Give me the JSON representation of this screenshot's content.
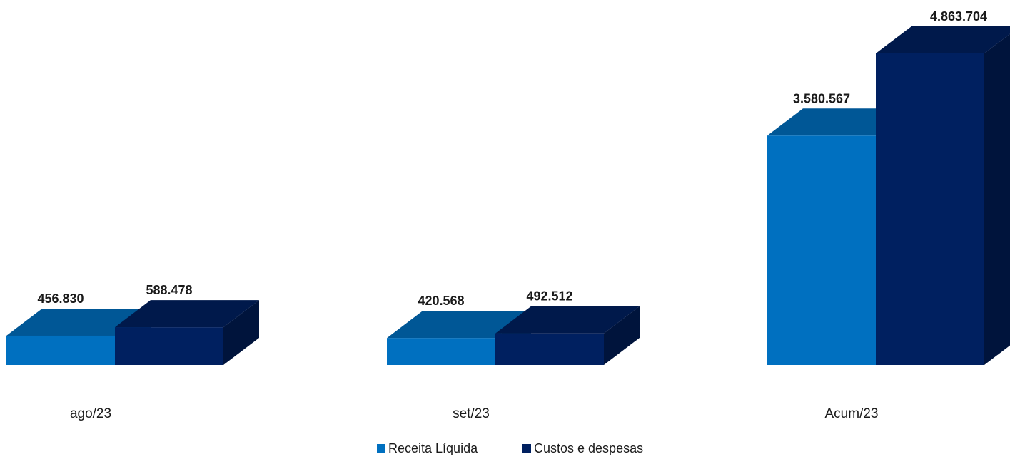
{
  "chart_data": {
    "type": "bar",
    "categories": [
      "ago/23",
      "set/23",
      "Acum/23"
    ],
    "series": [
      {
        "name": "Receita Líquida",
        "values": [
          456830,
          420568,
          3580567
        ],
        "labels": [
          "456.830",
          "420.568",
          "3.580.567"
        ],
        "color": "#0070C0"
      },
      {
        "name": "Custos e despesas",
        "values": [
          588478,
          492512,
          4863704
        ],
        "labels": [
          "588.478",
          "492.512",
          "4.863.704"
        ],
        "color": "#002060"
      }
    ],
    "legend": "bottom",
    "grid": false,
    "style": "3d-clustered-column"
  }
}
